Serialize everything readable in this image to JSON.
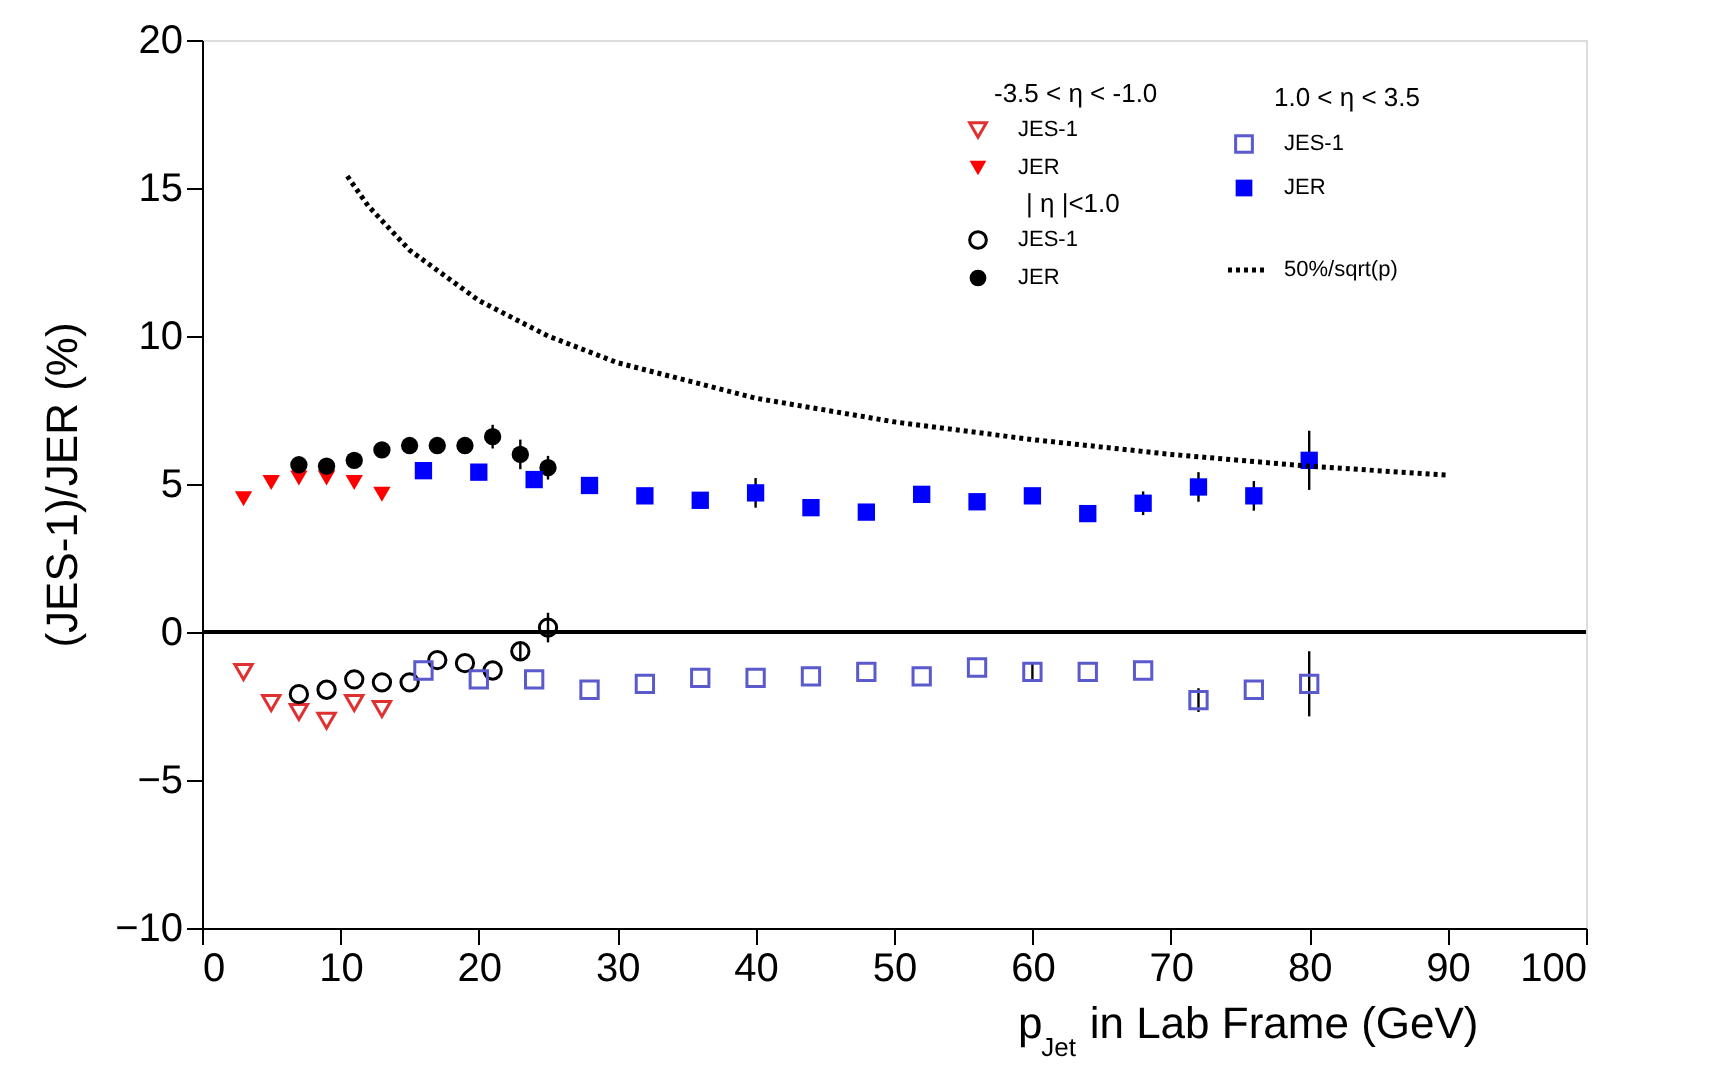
{
  "chart_data": {
    "type": "scatter",
    "xlabel": "p$_{Jet}$ in Lab Frame (GeV)",
    "ylabel": "(JES-1)/JER (%)",
    "xlim": [
      0,
      100
    ],
    "xticks": [
      0,
      10,
      20,
      30,
      40,
      50,
      60,
      70,
      80,
      90,
      100
    ],
    "ylim": [
      -10,
      20
    ],
    "yticks": [
      -10,
      -5,
      0,
      5,
      10,
      15,
      20
    ],
    "grid": false,
    "legend": "top right",
    "annotations": [
      "-3.5 < η < -1.0",
      "| η |<1.0",
      "1.0 < η < 3.5"
    ],
    "ref_lines": [
      {
        "axis": "y",
        "value": 0,
        "color": "#000000"
      }
    ],
    "series": [
      {
        "name": "JES-1",
        "color": "#e03030",
        "marker": "triangle",
        "x": [
          3,
          5,
          7,
          9,
          11,
          13
        ],
        "values": [
          -1.35,
          -2.4,
          -2.7,
          -3.0,
          -2.4,
          -2.6
        ]
      },
      {
        "name": "JER",
        "color": "#ff0000",
        "marker": "triangle",
        "x": [
          3,
          5,
          7,
          9,
          11,
          13
        ],
        "values": [
          4.5,
          5.05,
          5.2,
          5.2,
          5.05,
          4.65
        ]
      },
      {
        "name": "JES-1",
        "color": "#000000",
        "marker": "circle",
        "x": [
          7,
          9,
          11,
          13,
          15,
          17,
          19,
          21,
          23,
          25
        ],
        "values": [
          -2.1,
          -1.95,
          -1.6,
          -1.7,
          -1.7,
          -0.95,
          -1.05,
          -1.3,
          -0.65,
          0.15
        ],
        "errors": [
          null,
          null,
          null,
          null,
          null,
          null,
          null,
          null,
          0.3,
          0.5
        ]
      },
      {
        "name": "JER",
        "color": "#000000",
        "marker": "circle",
        "x": [
          7,
          9,
          11,
          13,
          15,
          17,
          19,
          21,
          23,
          25
        ],
        "values": [
          5.65,
          5.6,
          5.8,
          6.15,
          6.3,
          6.3,
          6.3,
          6.6,
          6.0,
          5.55
        ],
        "errors": [
          null,
          null,
          null,
          null,
          null,
          null,
          null,
          0.4,
          0.5,
          0.4
        ]
      },
      {
        "name": "JES-1",
        "color": "#5a5acd",
        "marker": "square",
        "x": [
          16,
          20,
          24,
          28,
          32,
          36,
          40,
          44,
          48,
          52,
          56,
          60,
          64,
          68,
          72,
          76,
          80
        ],
        "values": [
          -1.3,
          -1.6,
          -1.6,
          -1.95,
          -1.75,
          -1.55,
          -1.55,
          -1.5,
          -1.35,
          -1.5,
          -1.2,
          -1.35,
          -1.35,
          -1.3,
          -2.3,
          -1.95,
          -1.75
        ],
        "errors": [
          null,
          null,
          null,
          null,
          null,
          null,
          null,
          null,
          null,
          null,
          null,
          0.3,
          null,
          null,
          0.4,
          null,
          1.1
        ]
      },
      {
        "name": "JER",
        "color": "#0000ff",
        "marker": "square",
        "x": [
          16,
          20,
          24,
          28,
          32,
          36,
          40,
          44,
          48,
          52,
          56,
          60,
          64,
          68,
          72,
          76,
          80
        ],
        "values": [
          5.45,
          5.4,
          5.15,
          4.95,
          4.6,
          4.45,
          4.7,
          4.2,
          4.05,
          4.65,
          4.4,
          4.6,
          4.0,
          4.35,
          4.9,
          4.6,
          5.8
        ],
        "errors": [
          null,
          null,
          null,
          null,
          null,
          null,
          0.5,
          null,
          null,
          null,
          null,
          null,
          null,
          0.4,
          0.5,
          0.5,
          1.0
        ]
      },
      {
        "name": "50%/sqrt(p)",
        "type": "line",
        "line_style": "dotted",
        "color": "#000000",
        "x": [
          10.5,
          12,
          15,
          20,
          25,
          30,
          40,
          50,
          60,
          70,
          80,
          90
        ],
        "values": [
          15.4,
          14.4,
          12.9,
          11.2,
          10.0,
          9.1,
          7.9,
          7.1,
          6.5,
          6.0,
          5.6,
          5.3
        ]
      }
    ]
  }
}
